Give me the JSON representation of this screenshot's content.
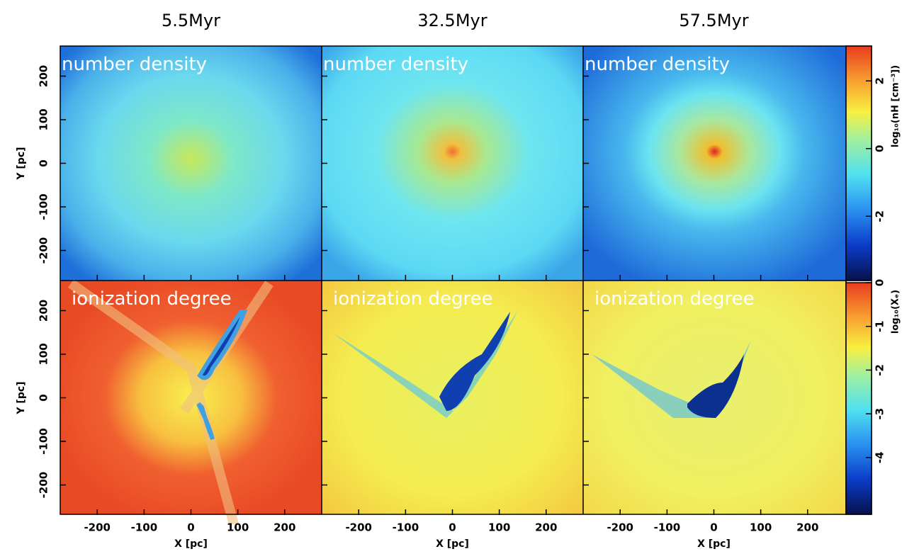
{
  "figure": {
    "columns": [
      "5.5Myr",
      "32.5Myr",
      "57.5Myr"
    ],
    "rows": [
      {
        "label": "number density",
        "colorbar": {
          "label": "log₁₀(nH [cm⁻³])",
          "lim": [
            -3.9,
            3.03
          ],
          "ticks": [
            -2,
            0,
            2
          ]
        }
      },
      {
        "label": "ionization degree",
        "colorbar": {
          "label": "log₁₀(Xₑ)",
          "lim": [
            -5.3,
            0
          ],
          "ticks": [
            -4,
            -3,
            -2,
            -1,
            0
          ]
        }
      }
    ],
    "xlabel": "X [pc]",
    "ylabel": "Y [pc]",
    "xlim": [
      -279,
      279
    ],
    "ylim": [
      -269,
      269
    ],
    "xticks": [
      -200,
      -100,
      0,
      100,
      200
    ],
    "yticks": [
      -200,
      -100,
      0,
      100,
      200
    ]
  }
}
